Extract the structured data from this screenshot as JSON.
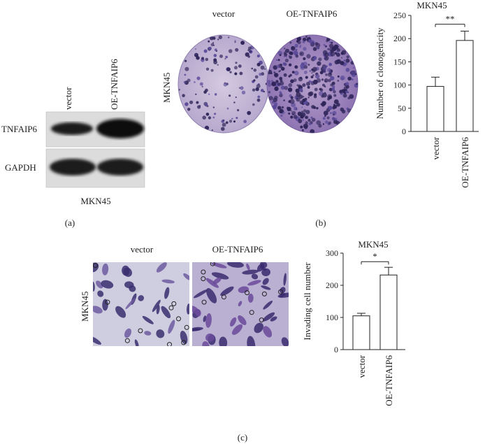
{
  "panel_a": {
    "panel_label": "(a)",
    "lane_labels": [
      "vector",
      "OE-TNFAIP6"
    ],
    "row_labels": [
      "TNFAIP6",
      "GAPDH"
    ],
    "cell_line": "MKN45"
  },
  "panel_b": {
    "panel_label": "(b)",
    "image_titles": [
      "vector",
      "OE-TNFAIP6"
    ],
    "side_label": "MKN45"
  },
  "panel_c": {
    "panel_label": "(c)",
    "image_titles": [
      "vector",
      "OE-TNFAIP6"
    ],
    "side_label": "MKN45"
  },
  "colors": {
    "crystal_violet": "#5a4a9a",
    "plate_background": "#c8bdd8",
    "blot_band": "#1a1a1a",
    "blot_background": "#dcdcdc"
  },
  "chart_data": [
    {
      "id": "b",
      "type": "bar",
      "title": "MKN45",
      "ylabel": "Number of clonogenicity",
      "categories": [
        "vector",
        "OE-TNFAIP6"
      ],
      "values": [
        97,
        196
      ],
      "errors": [
        20,
        20
      ],
      "ylim": [
        0,
        250
      ],
      "yticks": [
        0,
        50,
        100,
        150,
        200,
        250
      ],
      "significance": "**"
    },
    {
      "id": "c",
      "type": "bar",
      "title": "MKN45",
      "ylabel": "Invading cell number",
      "categories": [
        "vector",
        "OE-TNFAIP6"
      ],
      "values": [
        105,
        232
      ],
      "errors": [
        8,
        24
      ],
      "ylim": [
        0,
        300
      ],
      "yticks": [
        0,
        100,
        200,
        300
      ],
      "significance": "*"
    }
  ]
}
